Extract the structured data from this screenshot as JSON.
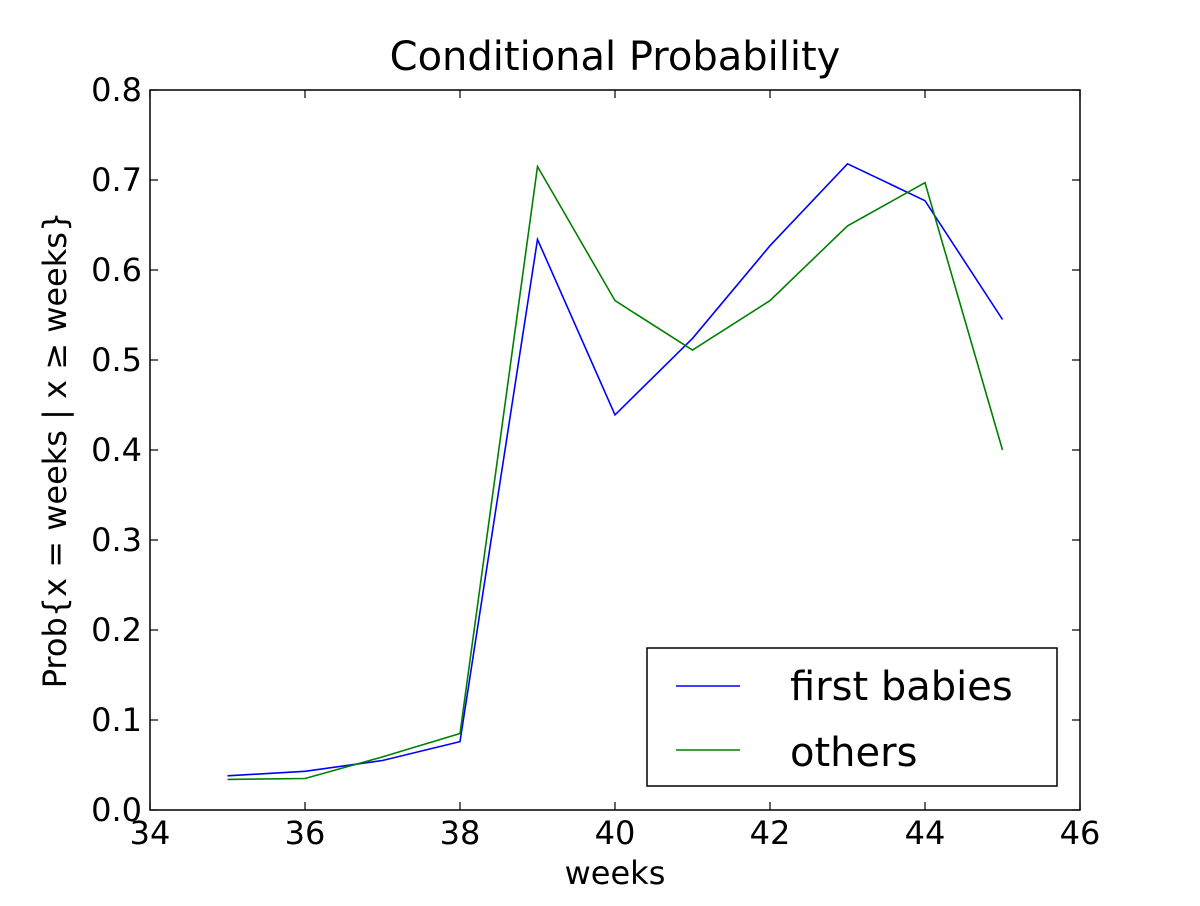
{
  "chart_data": {
    "type": "line",
    "title": "Conditional Probability",
    "xlabel": "weeks",
    "ylabel": "Prob{x = weeks | x ≥ weeks}",
    "xlim": [
      34,
      46
    ],
    "ylim": [
      0.0,
      0.8
    ],
    "xticks": [
      "34",
      "36",
      "38",
      "40",
      "42",
      "44",
      "46"
    ],
    "yticks": [
      "0.0",
      "0.1",
      "0.2",
      "0.3",
      "0.4",
      "0.5",
      "0.6",
      "0.7",
      "0.8"
    ],
    "grid": false,
    "legend_position": "lower-right",
    "x": [
      35,
      36,
      37,
      38,
      39,
      40,
      41,
      42,
      43,
      44,
      45
    ],
    "series": [
      {
        "name": "first babies",
        "color": "#0000ff",
        "values": [
          0.038,
          0.043,
          0.055,
          0.076,
          0.634,
          0.439,
          0.524,
          0.627,
          0.718,
          0.677,
          0.545
        ]
      },
      {
        "name": "others",
        "color": "#008000",
        "values": [
          0.034,
          0.035,
          0.059,
          0.085,
          0.715,
          0.566,
          0.511,
          0.566,
          0.649,
          0.697,
          0.4
        ]
      }
    ]
  }
}
